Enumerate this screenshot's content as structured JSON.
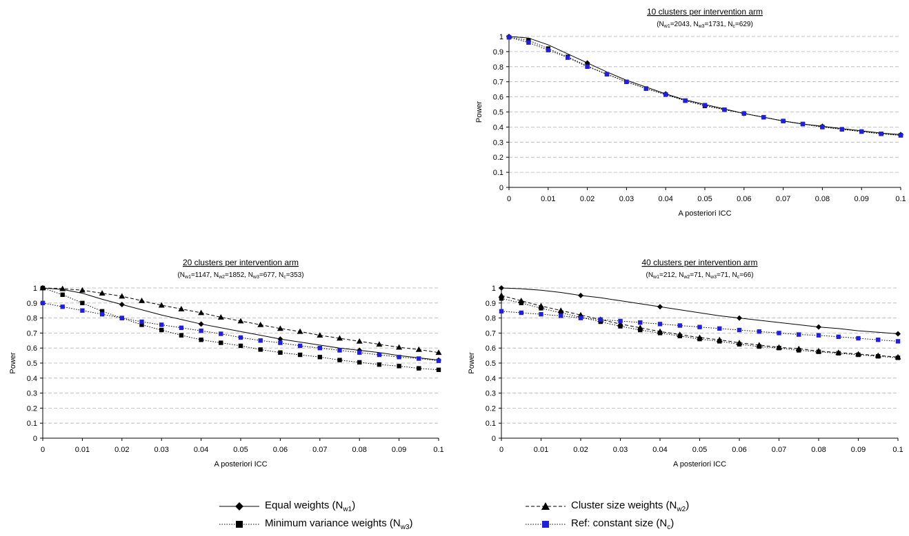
{
  "colors": {
    "black": "#000000",
    "blue": "#1f1fe0",
    "grid": "#b4b4b4"
  },
  "marker_icons": [
    "diamond-icon",
    "triangle-icon",
    "square-icon",
    "square-icon"
  ],
  "legend": [
    {
      "label": "Equal weights",
      "sub_base": "N",
      "sub": "w1",
      "marker": "diamond",
      "dash": "solid",
      "color": "#000000"
    },
    {
      "label": "Cluster size weights",
      "sub_base": "N",
      "sub": "w2",
      "marker": "triangle",
      "dash": "dashed",
      "color": "#000000"
    },
    {
      "label": "Minimum variance weights",
      "sub_base": "N",
      "sub": "w3",
      "marker": "square",
      "dash": "dotted",
      "color": "#000000"
    },
    {
      "label": "Ref: constant size",
      "sub_base": "N",
      "sub": "c",
      "marker": "square",
      "dash": "dotted",
      "color": "#1f1fe0"
    }
  ],
  "chart_data": [
    {
      "type": "line",
      "title": "10 clusters per intervention arm",
      "subtitle": [
        {
          "base": "N",
          "sub": "w1",
          "value": "=2043"
        },
        {
          "base": "N",
          "sub": "w3",
          "value": "=1731"
        },
        {
          "base": "N",
          "sub": "c",
          "value": "=629"
        }
      ],
      "xlabel": "A posteriori ICC",
      "ylabel": "Power",
      "xlim": [
        0,
        0.1
      ],
      "ylim": [
        0,
        1
      ],
      "xticks": [
        "0",
        "0.01",
        "0.02",
        "0.03",
        "0.04",
        "0.05",
        "0.06",
        "0.07",
        "0.08",
        "0.09",
        "0.1"
      ],
      "yticks": [
        "0",
        "0.1",
        "0.2",
        "0.3",
        "0.4",
        "0.5",
        "0.6",
        "0.7",
        "0.8",
        "0.9",
        "1"
      ],
      "grid": true,
      "x": [
        0,
        0.005,
        0.01,
        0.015,
        0.02,
        0.025,
        0.03,
        0.035,
        0.04,
        0.045,
        0.05,
        0.055,
        0.06,
        0.065,
        0.07,
        0.075,
        0.08,
        0.085,
        0.09,
        0.095,
        0.1
      ],
      "series": [
        {
          "name": "Equal weights",
          "marker": "diamond",
          "dash": "solid",
          "color": "#000000",
          "marker_every": 4,
          "values": [
            1.0,
            0.99,
            0.945,
            0.885,
            0.825,
            0.765,
            0.71,
            0.665,
            0.62,
            0.58,
            0.55,
            0.52,
            0.49,
            0.465,
            0.44,
            0.42,
            0.405,
            0.39,
            0.375,
            0.36,
            0.35
          ]
        },
        {
          "name": "Minimum variance weights",
          "marker": "square",
          "dash": "dotted",
          "color": "#000000",
          "marker_every": 1,
          "values": [
            0.995,
            0.975,
            0.92,
            0.865,
            0.805,
            0.75,
            0.7,
            0.655,
            0.615,
            0.575,
            0.54,
            0.515,
            0.49,
            0.465,
            0.44,
            0.42,
            0.4,
            0.385,
            0.37,
            0.355,
            0.345
          ]
        },
        {
          "name": "Ref: constant size",
          "marker": "square",
          "dash": "dotted",
          "color": "#1f1fe0",
          "marker_every": 1,
          "values": [
            0.995,
            0.96,
            0.91,
            0.86,
            0.8,
            0.75,
            0.7,
            0.655,
            0.615,
            0.575,
            0.545,
            0.515,
            0.49,
            0.465,
            0.44,
            0.42,
            0.4,
            0.385,
            0.37,
            0.355,
            0.345
          ]
        }
      ]
    },
    {
      "type": "line",
      "title": "20 clusters per intervention arm",
      "subtitle": [
        {
          "base": "N",
          "sub": "w1",
          "value": "=1147"
        },
        {
          "base": "N",
          "sub": "w2",
          "value": "=1852"
        },
        {
          "base": "N",
          "sub": "w3",
          "value": "=677"
        },
        {
          "base": "N",
          "sub": "c",
          "value": "=353"
        }
      ],
      "xlabel": "A posteriori ICC",
      "ylabel": "Power",
      "xlim": [
        0,
        0.1
      ],
      "ylim": [
        0,
        1
      ],
      "xticks": [
        "0",
        "0.01",
        "0.02",
        "0.03",
        "0.04",
        "0.05",
        "0.06",
        "0.07",
        "0.08",
        "0.09",
        "0.1"
      ],
      "yticks": [
        "0",
        "0.1",
        "0.2",
        "0.3",
        "0.4",
        "0.5",
        "0.6",
        "0.7",
        "0.8",
        "0.9",
        "1"
      ],
      "grid": true,
      "x": [
        0,
        0.005,
        0.01,
        0.015,
        0.02,
        0.025,
        0.03,
        0.035,
        0.04,
        0.045,
        0.05,
        0.055,
        0.06,
        0.065,
        0.07,
        0.075,
        0.08,
        0.085,
        0.09,
        0.095,
        0.1
      ],
      "series": [
        {
          "name": "Equal weights",
          "marker": "diamond",
          "dash": "solid",
          "color": "#000000",
          "marker_every": 4,
          "values": [
            1.0,
            0.99,
            0.965,
            0.925,
            0.89,
            0.855,
            0.82,
            0.79,
            0.76,
            0.735,
            0.71,
            0.685,
            0.66,
            0.64,
            0.62,
            0.6,
            0.585,
            0.57,
            0.55,
            0.535,
            0.52
          ]
        },
        {
          "name": "Cluster size weights",
          "marker": "triangle",
          "dash": "dashed",
          "color": "#000000",
          "marker_every": 1,
          "values": [
            1.0,
            0.995,
            0.985,
            0.965,
            0.945,
            0.915,
            0.885,
            0.86,
            0.835,
            0.805,
            0.78,
            0.755,
            0.73,
            0.71,
            0.685,
            0.665,
            0.645,
            0.625,
            0.605,
            0.59,
            0.57
          ]
        },
        {
          "name": "Minimum variance weights",
          "marker": "square",
          "dash": "dotted",
          "color": "#000000",
          "marker_every": 1,
          "values": [
            1.0,
            0.955,
            0.9,
            0.845,
            0.8,
            0.755,
            0.72,
            0.685,
            0.655,
            0.635,
            0.615,
            0.59,
            0.57,
            0.555,
            0.54,
            0.52,
            0.505,
            0.49,
            0.48,
            0.465,
            0.455
          ]
        },
        {
          "name": "Ref: constant size",
          "marker": "square",
          "dash": "dotted",
          "color": "#1f1fe0",
          "marker_every": 1,
          "values": [
            0.9,
            0.875,
            0.85,
            0.825,
            0.8,
            0.775,
            0.755,
            0.735,
            0.715,
            0.695,
            0.67,
            0.65,
            0.635,
            0.615,
            0.6,
            0.585,
            0.57,
            0.555,
            0.54,
            0.53,
            0.515
          ]
        }
      ]
    },
    {
      "type": "line",
      "title": "40 clusters per intervention arm",
      "subtitle": [
        {
          "base": "N",
          "sub": "w1",
          "value": "=212"
        },
        {
          "base": "N",
          "sub": "w2",
          "value": "=71"
        },
        {
          "base": "N",
          "sub": "w3",
          "value": "=71"
        },
        {
          "base": "N",
          "sub": "c",
          "value": "=66"
        }
      ],
      "xlabel": "A posteriori ICC",
      "ylabel": "Power",
      "xlim": [
        0,
        0.1
      ],
      "ylim": [
        0,
        1
      ],
      "xticks": [
        "0",
        "0.01",
        "0.02",
        "0.03",
        "0.04",
        "0.05",
        "0.06",
        "0.07",
        "0.08",
        "0.09",
        "0.1"
      ],
      "yticks": [
        "0",
        "0.1",
        "0.2",
        "0.3",
        "0.4",
        "0.5",
        "0.6",
        "0.7",
        "0.8",
        "0.9",
        "1"
      ],
      "grid": true,
      "x": [
        0,
        0.005,
        0.01,
        0.015,
        0.02,
        0.025,
        0.03,
        0.035,
        0.04,
        0.045,
        0.05,
        0.055,
        0.06,
        0.065,
        0.07,
        0.075,
        0.08,
        0.085,
        0.09,
        0.095,
        0.1
      ],
      "series": [
        {
          "name": "Equal weights",
          "marker": "diamond",
          "dash": "solid",
          "color": "#000000",
          "marker_every": 4,
          "values": [
            1.0,
            0.995,
            0.985,
            0.97,
            0.95,
            0.935,
            0.915,
            0.895,
            0.875,
            0.855,
            0.835,
            0.815,
            0.8,
            0.785,
            0.77,
            0.755,
            0.74,
            0.73,
            0.715,
            0.705,
            0.695
          ]
        },
        {
          "name": "Cluster size weights",
          "marker": "triangle",
          "dash": "dashed",
          "color": "#000000",
          "marker_every": 1,
          "values": [
            0.95,
            0.915,
            0.88,
            0.85,
            0.82,
            0.79,
            0.76,
            0.735,
            0.71,
            0.69,
            0.67,
            0.655,
            0.635,
            0.62,
            0.605,
            0.595,
            0.58,
            0.57,
            0.56,
            0.55,
            0.54
          ]
        },
        {
          "name": "Minimum variance weights",
          "marker": "square",
          "dash": "dotted",
          "color": "#000000",
          "marker_every": 1,
          "values": [
            0.93,
            0.9,
            0.865,
            0.835,
            0.805,
            0.775,
            0.745,
            0.72,
            0.7,
            0.68,
            0.66,
            0.645,
            0.625,
            0.61,
            0.6,
            0.585,
            0.575,
            0.565,
            0.555,
            0.545,
            0.535
          ]
        },
        {
          "name": "Ref: constant size",
          "marker": "square",
          "dash": "dotted",
          "color": "#1f1fe0",
          "marker_every": 1,
          "values": [
            0.845,
            0.835,
            0.825,
            0.815,
            0.8,
            0.79,
            0.78,
            0.77,
            0.76,
            0.75,
            0.74,
            0.73,
            0.72,
            0.71,
            0.7,
            0.69,
            0.685,
            0.675,
            0.665,
            0.655,
            0.645
          ]
        }
      ]
    }
  ]
}
